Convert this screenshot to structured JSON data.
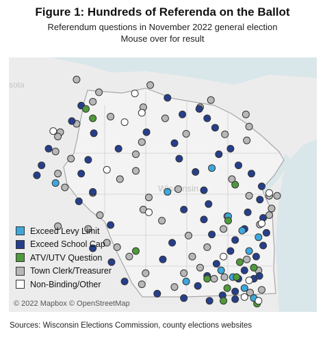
{
  "title": "Figure 1: Hundreds of Referenda on the Ballot",
  "subtitle": "Referendum questions in November 2022 general election",
  "instruction": "Mouse over for result",
  "map_labels": {
    "state_partial": "sota",
    "city": "Wisconsin"
  },
  "attribution": "© 2022 Mapbox © OpenStreetMap",
  "source": "Sources: Wisconsin Elections Commission, county elections websites",
  "colors": {
    "levy": "#3ea8dc",
    "school": "#263f8c",
    "atv": "#4f9a3b",
    "clerk": "#b8b8b8",
    "other": "#ffffff",
    "water": "#d9e6ea",
    "land": "#ececec"
  },
  "legend": [
    {
      "key": "levy",
      "label": "Exceed  Levy Limit"
    },
    {
      "key": "school",
      "label": "Exceed School Cap"
    },
    {
      "key": "atv",
      "label": "ATV/UTV Question"
    },
    {
      "key": "clerk",
      "label": "Town Clerk/Treasurer"
    },
    {
      "key": "other",
      "label": "Non-Binding/Other"
    }
  ],
  "markers": [
    [
      "clerk",
      43.9,
      -92.25
    ],
    [
      "clerk",
      43.85,
      -91.6
    ],
    [
      "clerk",
      42.95,
      -88.9
    ],
    [
      "clerk",
      42.98,
      -88.68
    ],
    [
      "clerk",
      43.35,
      -90.72
    ],
    [
      "clerk",
      43.52,
      -90.98
    ],
    [
      "clerk",
      43.05,
      -90.37
    ],
    [
      "clerk",
      45.57,
      -89.5
    ],
    [
      "clerk",
      44.9,
      -90.58
    ],
    [
      "clerk",
      44.75,
      -90.92
    ],
    [
      "clerk",
      45.2,
      -90.58
    ],
    [
      "clerk",
      45.42,
      -90.45
    ],
    [
      "clerk",
      45.85,
      -89.95
    ],
    [
      "clerk",
      46.05,
      -89.2
    ],
    [
      "clerk",
      46.18,
      -88.97
    ],
    [
      "clerk",
      45.92,
      -88.22
    ],
    [
      "clerk",
      45.56,
      -88.67
    ],
    [
      "clerk",
      45.45,
      -88.2
    ],
    [
      "clerk",
      45.7,
      -88.15
    ],
    [
      "clerk",
      44.57,
      -89.67
    ],
    [
      "clerk",
      44.42,
      -90.3
    ],
    [
      "clerk",
      44.2,
      -90.42
    ],
    [
      "clerk",
      44.0,
      -90.02
    ],
    [
      "clerk",
      43.85,
      -88.7
    ],
    [
      "clerk",
      44.08,
      -88.62
    ],
    [
      "clerk",
      43.73,
      -89.45
    ],
    [
      "clerk",
      43.35,
      -89.37
    ],
    [
      "clerk",
      43.52,
      -89.05
    ],
    [
      "clerk",
      42.7,
      -88.13
    ],
    [
      "clerk",
      42.75,
      -87.88
    ],
    [
      "clerk",
      43.1,
      -87.95
    ],
    [
      "clerk",
      43.3,
      -88.2
    ],
    [
      "clerk",
      43.05,
      -89.55
    ],
    [
      "clerk",
      43.15,
      -89.2
    ],
    [
      "clerk",
      44.75,
      -88.52
    ],
    [
      "clerk",
      44.45,
      -88.15
    ],
    [
      "clerk",
      44.22,
      -87.67
    ],
    [
      "clerk",
      44.45,
      -87.72
    ],
    [
      "clerk",
      44.45,
      -87.55
    ],
    [
      "clerk",
      44.1,
      -87.72
    ],
    [
      "clerk",
      43.93,
      -87.92
    ],
    [
      "clerk",
      46.55,
      -91.85
    ],
    [
      "clerk",
      46.32,
      -91.37
    ],
    [
      "clerk",
      46.15,
      -91.5
    ],
    [
      "clerk",
      45.88,
      -91.12
    ],
    [
      "clerk",
      45.75,
      -91.85
    ],
    [
      "clerk",
      45.6,
      -92.2
    ],
    [
      "clerk",
      45.25,
      -92.3
    ],
    [
      "clerk",
      45.12,
      -91.97
    ],
    [
      "clerk",
      44.85,
      -92.25
    ],
    [
      "clerk",
      44.6,
      -92.1
    ],
    [
      "clerk",
      44.5,
      -91.5
    ],
    [
      "clerk",
      44.1,
      -91.35
    ],
    [
      "clerk",
      43.6,
      -91.2
    ],
    [
      "clerk",
      42.85,
      -90.45
    ],
    [
      "clerk",
      42.8,
      -89.75
    ],
    [
      "clerk",
      46.45,
      -90.27
    ],
    [
      "clerk",
      46.05,
      -90.42
    ],
    [
      "clerk",
      45.52,
      -92.25
    ],
    [
      "school",
      46.22,
      -89.9
    ],
    [
      "school",
      46.02,
      -89.22
    ],
    [
      "school",
      45.92,
      -89.58
    ],
    [
      "school",
      45.85,
      -89.05
    ],
    [
      "school",
      45.68,
      -88.88
    ],
    [
      "school",
      45.3,
      -88.55
    ],
    [
      "school",
      45.0,
      -88.38
    ],
    [
      "school",
      44.85,
      -88.1
    ],
    [
      "school",
      44.62,
      -87.88
    ],
    [
      "school",
      44.38,
      -87.92
    ],
    [
      "school",
      44.05,
      -87.85
    ],
    [
      "school",
      43.78,
      -87.78
    ],
    [
      "school",
      43.55,
      -87.85
    ],
    [
      "school",
      43.35,
      -88.0
    ],
    [
      "school",
      43.1,
      -88.25
    ],
    [
      "school",
      42.95,
      -88.38
    ],
    [
      "school",
      42.72,
      -88.45
    ],
    [
      "school",
      42.65,
      -88.72
    ],
    [
      "school",
      42.55,
      -89.0
    ],
    [
      "school",
      42.6,
      -89.55
    ],
    [
      "school",
      42.68,
      -90.12
    ],
    [
      "school",
      42.9,
      -90.82
    ],
    [
      "school",
      43.25,
      -91.1
    ],
    [
      "school",
      43.5,
      -91.5
    ],
    [
      "school",
      43.92,
      -91.12
    ],
    [
      "school",
      44.35,
      -91.8
    ],
    [
      "school",
      44.52,
      -91.5
    ],
    [
      "school",
      44.85,
      -91.75
    ],
    [
      "school",
      45.1,
      -91.6
    ],
    [
      "school",
      45.3,
      -90.95
    ],
    [
      "school",
      45.6,
      -90.35
    ],
    [
      "school",
      45.4,
      -89.75
    ],
    [
      "school",
      45.12,
      -89.65
    ],
    [
      "school",
      44.88,
      -89.3
    ],
    [
      "school",
      44.55,
      -89.12
    ],
    [
      "school",
      44.3,
      -89.02
    ],
    [
      "school",
      44.02,
      -89.12
    ],
    [
      "school",
      43.75,
      -88.95
    ],
    [
      "school",
      43.45,
      -88.55
    ],
    [
      "school",
      43.22,
      -88.85
    ],
    [
      "school",
      43.0,
      -89.05
    ],
    [
      "school",
      42.82,
      -89.25
    ],
    [
      "school",
      43.85,
      -88.25
    ],
    [
      "school",
      44.15,
      -88.18
    ],
    [
      "school",
      43.6,
      -89.8
    ],
    [
      "school",
      46.08,
      -91.75
    ],
    [
      "school",
      45.8,
      -91.95
    ],
    [
      "school",
      45.58,
      -91.48
    ],
    [
      "school",
      45.3,
      -92.45
    ],
    [
      "school",
      45.0,
      -92.6
    ],
    [
      "school",
      44.82,
      -92.7
    ],
    [
      "school",
      43.3,
      -90.0
    ],
    [
      "school",
      45.2,
      -88.8
    ],
    [
      "school",
      44.2,
      -89.55
    ],
    [
      "school",
      42.95,
      -88.05
    ],
    [
      "school",
      43.0,
      -87.93
    ],
    [
      "school",
      43.65,
      -88.45
    ],
    [
      "school",
      42.58,
      -88.45
    ],
    [
      "levy",
      44.68,
      -92.3
    ],
    [
      "levy",
      44.52,
      -89.9
    ],
    [
      "levy",
      44.95,
      -88.95
    ],
    [
      "levy",
      44.08,
      -88.6
    ],
    [
      "levy",
      43.7,
      -87.95
    ],
    [
      "levy",
      43.45,
      -88.15
    ],
    [
      "levy",
      42.98,
      -88.5
    ],
    [
      "levy",
      42.78,
      -88.25
    ],
    [
      "levy",
      43.82,
      -88.3
    ],
    [
      "levy",
      43.1,
      -88.75
    ],
    [
      "levy",
      42.6,
      -88.05
    ],
    [
      "levy",
      42.9,
      -89.5
    ],
    [
      "atv",
      46.02,
      -91.65
    ],
    [
      "atv",
      45.85,
      -91.5
    ],
    [
      "atv",
      43.45,
      -90.58
    ],
    [
      "atv",
      44.0,
      -88.6
    ],
    [
      "atv",
      43.25,
      -88.35
    ],
    [
      "atv",
      42.98,
      -88.42
    ],
    [
      "atv",
      42.78,
      -88.62
    ],
    [
      "atv",
      42.55,
      -88.7
    ],
    [
      "atv",
      42.5,
      -87.98
    ],
    [
      "atv",
      43.15,
      -88.05
    ],
    [
      "atv",
      44.65,
      -88.45
    ],
    [
      "atv",
      42.95,
      -89.05
    ],
    [
      "other",
      45.95,
      -90.45
    ],
    [
      "other",
      45.78,
      -90.82
    ],
    [
      "other",
      45.62,
      -92.35
    ],
    [
      "other",
      44.92,
      -91.2
    ],
    [
      "other",
      44.15,
      -90.3
    ],
    [
      "other",
      43.35,
      -88.7
    ],
    [
      "other",
      42.92,
      -88.15
    ],
    [
      "other",
      42.62,
      -88.25
    ],
    [
      "other",
      42.55,
      -87.95
    ],
    [
      "other",
      43.95,
      -87.88
    ],
    [
      "other",
      46.3,
      -90.6
    ],
    [
      "other",
      44.5,
      -87.72
    ]
  ]
}
